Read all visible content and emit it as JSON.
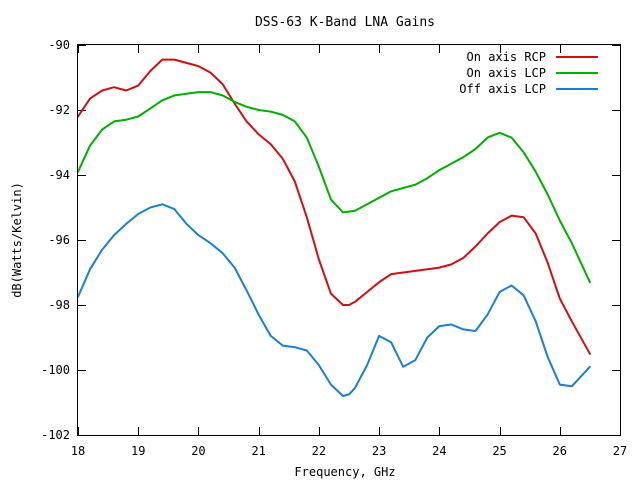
{
  "chart_data": {
    "type": "line",
    "title": "DSS-63 K-Band LNA Gains",
    "xlabel": "Frequency, GHz",
    "ylabel": "dB(Watts/Kelvin)",
    "xlim": [
      18,
      27
    ],
    "ylim": [
      -102,
      -90
    ],
    "xticks": [
      18,
      19,
      20,
      21,
      22,
      23,
      24,
      25,
      26,
      27
    ],
    "yticks": [
      -102,
      -100,
      -98,
      -96,
      -94,
      -92,
      -90
    ],
    "xtick_labels": [
      "18",
      "19",
      "20",
      "21",
      "22",
      "23",
      "24",
      "25",
      "26",
      "27"
    ],
    "ytick_labels": [
      "-102",
      "-100",
      "-98",
      "-96",
      "-94",
      "-92",
      "-90"
    ],
    "grid": false,
    "legend_position": "top-right",
    "series": [
      {
        "name": "On axis RCP",
        "color": "#d01010",
        "x": [
          18.0,
          18.2,
          18.4,
          18.6,
          18.8,
          19.0,
          19.2,
          19.4,
          19.6,
          19.8,
          20.0,
          20.2,
          20.4,
          20.6,
          20.8,
          21.0,
          21.2,
          21.4,
          21.6,
          21.8,
          22.0,
          22.2,
          22.4,
          22.5,
          22.6,
          22.8,
          23.0,
          23.2,
          23.4,
          23.6,
          23.8,
          24.0,
          24.2,
          24.4,
          24.6,
          24.8,
          25.0,
          25.2,
          25.4,
          25.6,
          25.8,
          26.0,
          26.2,
          26.5
        ],
        "y": [
          -92.2,
          -91.65,
          -91.4,
          -91.3,
          -91.4,
          -91.25,
          -90.8,
          -90.45,
          -90.45,
          -90.55,
          -90.65,
          -90.85,
          -91.2,
          -91.8,
          -92.35,
          -92.75,
          -93.05,
          -93.5,
          -94.2,
          -95.3,
          -96.6,
          -97.65,
          -98.0,
          -98.0,
          -97.9,
          -97.6,
          -97.3,
          -97.05,
          -97.0,
          -96.95,
          -96.9,
          -96.85,
          -96.75,
          -96.55,
          -96.2,
          -95.8,
          -95.45,
          -95.25,
          -95.3,
          -95.8,
          -96.7,
          -97.8,
          -98.5,
          -99.5
        ]
      },
      {
        "name": "On axis LCP",
        "color": "#00b000",
        "x": [
          18.0,
          18.2,
          18.4,
          18.6,
          18.8,
          19.0,
          19.2,
          19.4,
          19.6,
          19.8,
          20.0,
          20.2,
          20.4,
          20.6,
          20.8,
          21.0,
          21.2,
          21.4,
          21.6,
          21.8,
          22.0,
          22.2,
          22.4,
          22.6,
          22.8,
          23.0,
          23.2,
          23.4,
          23.6,
          23.8,
          24.0,
          24.2,
          24.4,
          24.6,
          24.8,
          25.0,
          25.2,
          25.4,
          25.6,
          25.8,
          26.0,
          26.2,
          26.5
        ],
        "y": [
          -93.9,
          -93.1,
          -92.6,
          -92.35,
          -92.3,
          -92.2,
          -91.95,
          -91.7,
          -91.55,
          -91.5,
          -91.45,
          -91.45,
          -91.55,
          -91.75,
          -91.9,
          -92.0,
          -92.05,
          -92.15,
          -92.35,
          -92.85,
          -93.75,
          -94.75,
          -95.15,
          -95.1,
          -94.9,
          -94.7,
          -94.5,
          -94.4,
          -94.3,
          -94.1,
          -93.85,
          -93.65,
          -93.45,
          -93.2,
          -92.85,
          -92.7,
          -92.85,
          -93.3,
          -93.9,
          -94.6,
          -95.4,
          -96.1,
          -97.3
        ]
      },
      {
        "name": "Off axis LCP",
        "color": "#1a7fd6",
        "x": [
          18.0,
          18.2,
          18.4,
          18.6,
          18.8,
          19.0,
          19.2,
          19.4,
          19.6,
          19.8,
          20.0,
          20.2,
          20.4,
          20.6,
          20.8,
          21.0,
          21.2,
          21.4,
          21.6,
          21.8,
          22.0,
          22.2,
          22.4,
          22.5,
          22.6,
          22.8,
          23.0,
          23.2,
          23.4,
          23.6,
          23.8,
          24.0,
          24.2,
          24.4,
          24.6,
          24.8,
          25.0,
          25.2,
          25.4,
          25.6,
          25.8,
          26.0,
          26.2,
          26.5
        ],
        "y": [
          -97.75,
          -96.9,
          -96.3,
          -95.85,
          -95.5,
          -95.2,
          -95.0,
          -94.9,
          -95.05,
          -95.5,
          -95.85,
          -96.1,
          -96.4,
          -96.85,
          -97.55,
          -98.3,
          -98.95,
          -99.25,
          -99.3,
          -99.4,
          -99.85,
          -100.45,
          -100.8,
          -100.75,
          -100.55,
          -99.85,
          -98.95,
          -99.15,
          -99.9,
          -99.7,
          -99.0,
          -98.65,
          -98.6,
          -98.75,
          -98.8,
          -98.3,
          -97.6,
          -97.4,
          -97.7,
          -98.5,
          -99.6,
          -100.45,
          -100.5,
          -99.9
        ]
      }
    ]
  }
}
